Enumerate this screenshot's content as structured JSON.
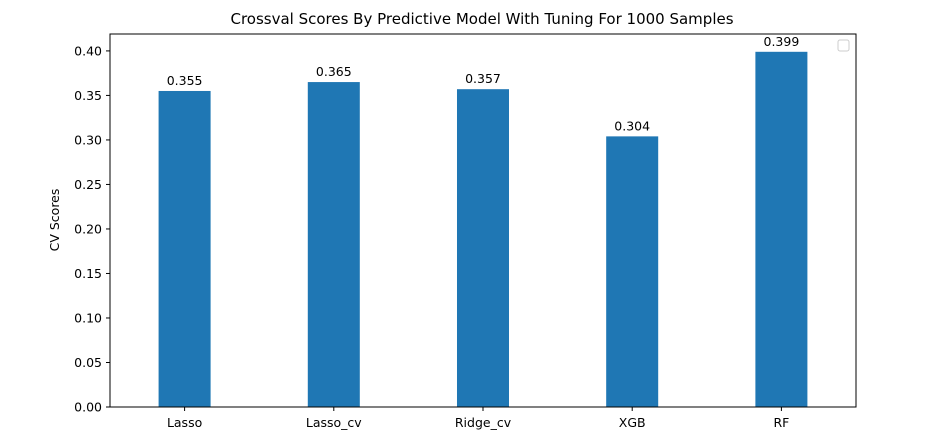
{
  "chart_data": {
    "type": "bar",
    "title": "Crossval Scores By Predictive Model With Tuning For 1000 Samples",
    "xlabel": "",
    "ylabel": "CV Scores",
    "categories": [
      "Lasso",
      "Lasso_cv",
      "Ridge_cv",
      "XGB",
      "RF"
    ],
    "values": [
      0.355,
      0.365,
      0.357,
      0.304,
      0.399
    ],
    "data_labels": [
      "0.355",
      "0.365",
      "0.357",
      "0.304",
      "0.399"
    ],
    "ylim": [
      0,
      0.419
    ],
    "yticks": [
      0.0,
      0.05,
      0.1,
      0.15,
      0.2,
      0.25,
      0.3,
      0.35,
      0.4
    ],
    "ytick_labels": [
      "0.00",
      "0.05",
      "0.10",
      "0.15",
      "0.20",
      "0.25",
      "0.30",
      "0.35",
      "0.40"
    ],
    "bar_color": "#1f77b4",
    "grid": false,
    "legend": {
      "placement": "top-right",
      "entries": []
    }
  }
}
